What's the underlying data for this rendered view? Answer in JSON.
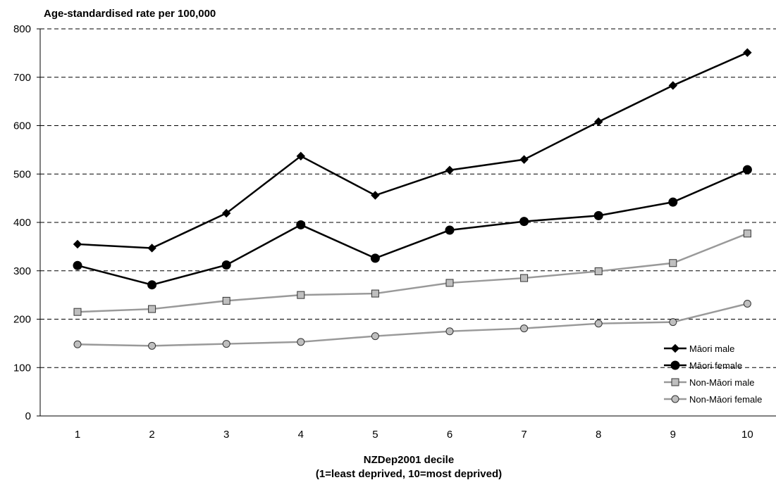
{
  "chart_data": {
    "type": "line",
    "title": "Age-standardised rate per 100,000",
    "xlabel": "NZDep2001 decile",
    "xlabel_sub": "(1=least deprived, 10=most deprived)",
    "ylabel": "",
    "ylim": [
      0,
      800
    ],
    "yticks": [
      0,
      100,
      200,
      300,
      400,
      500,
      600,
      700,
      800
    ],
    "grid": "horizontal dashed",
    "legend_position": "bottom-right",
    "categories": [
      "1",
      "2",
      "3",
      "4",
      "5",
      "6",
      "7",
      "8",
      "9",
      "10"
    ],
    "series": [
      {
        "name": "Māori male",
        "marker": "diamond",
        "color": "#000000",
        "marker_fill": "#000000",
        "values": [
          355,
          347,
          419,
          537,
          456,
          508,
          530,
          608,
          683,
          751
        ]
      },
      {
        "name": "Māori female",
        "marker": "circle",
        "color": "#000000",
        "marker_fill": "#000000",
        "values": [
          311,
          271,
          312,
          395,
          326,
          384,
          402,
          414,
          442,
          509
        ]
      },
      {
        "name": "Non-Māori male",
        "marker": "square",
        "color": "#999999",
        "marker_fill": "#bfbfbf",
        "values": [
          215,
          221,
          238,
          250,
          253,
          275,
          285,
          299,
          316,
          377
        ]
      },
      {
        "name": "Non-Māori female",
        "marker": "circle",
        "color": "#999999",
        "marker_fill": "#bfbfbf",
        "values": [
          148,
          145,
          149,
          153,
          165,
          175,
          181,
          191,
          194,
          232
        ]
      }
    ]
  }
}
